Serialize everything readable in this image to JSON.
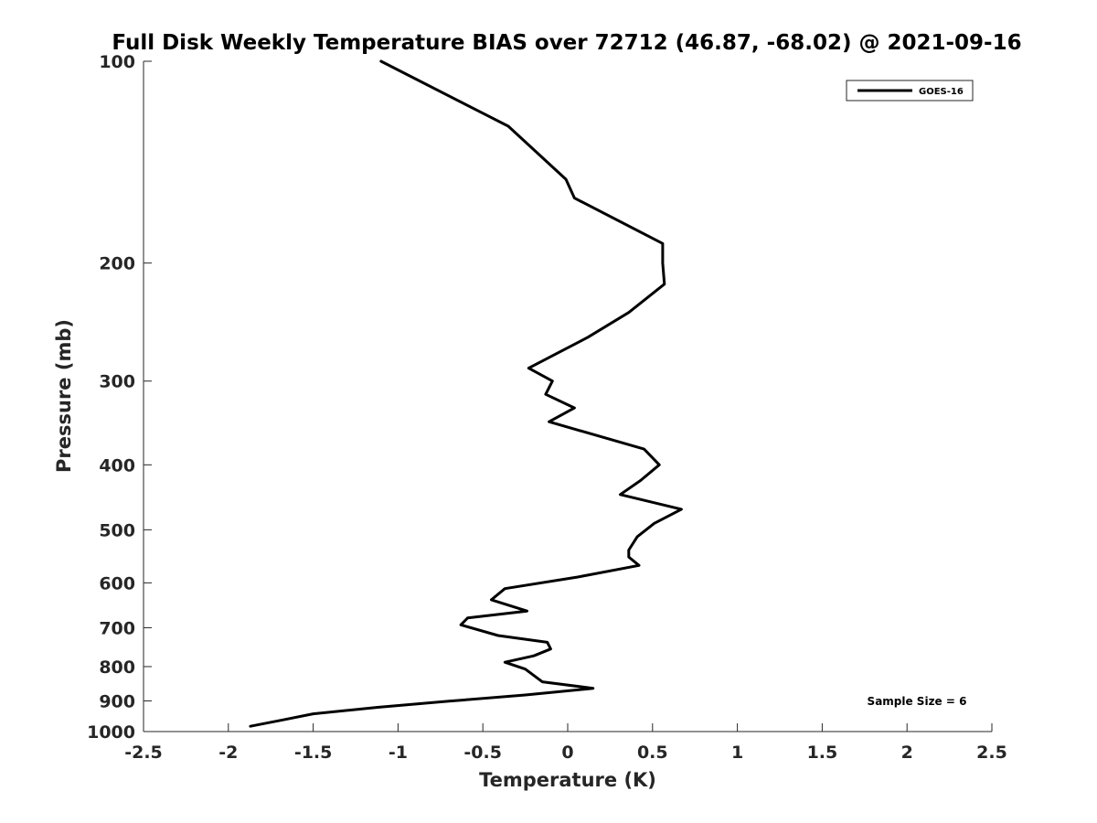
{
  "chart_data": {
    "type": "line",
    "title": "Full Disk Weekly Temperature BIAS over 72712 (46.87, -68.02) @ 2021-09-16",
    "xlabel": "Temperature (K)",
    "ylabel": "Pressure (mb)",
    "xlim": [
      -2.5,
      2.5
    ],
    "ylim": [
      100,
      1000
    ],
    "y_scale": "log",
    "y_reversed": true,
    "x_ticks": [
      {
        "value": -2.5,
        "label": "-2.5"
      },
      {
        "value": -2,
        "label": "-2"
      },
      {
        "value": -1.5,
        "label": "-1.5"
      },
      {
        "value": -1,
        "label": "-1"
      },
      {
        "value": -0.5,
        "label": "-0.5"
      },
      {
        "value": 0,
        "label": "0"
      },
      {
        "value": 0.5,
        "label": "0.5"
      },
      {
        "value": 1,
        "label": "1"
      },
      {
        "value": 1.5,
        "label": "1.5"
      },
      {
        "value": 2,
        "label": "2"
      },
      {
        "value": 2.5,
        "label": "2.5"
      }
    ],
    "y_ticks": [
      {
        "value": 100,
        "label": "100"
      },
      {
        "value": 200,
        "label": "200"
      },
      {
        "value": 300,
        "label": "300"
      },
      {
        "value": 400,
        "label": "400"
      },
      {
        "value": 500,
        "label": "500"
      },
      {
        "value": 600,
        "label": "600"
      },
      {
        "value": 700,
        "label": "700"
      },
      {
        "value": 800,
        "label": "800"
      },
      {
        "value": 900,
        "label": "900"
      },
      {
        "value": 1000,
        "label": "1000"
      }
    ],
    "grid": false,
    "legend_position": "top-right",
    "series": [
      {
        "name": "GOES-16",
        "color": "#000000",
        "points": [
          {
            "x": -1.1,
            "p": 100
          },
          {
            "x": -0.35,
            "p": 125
          },
          {
            "x": -0.01,
            "p": 150
          },
          {
            "x": 0.04,
            "p": 160
          },
          {
            "x": 0.56,
            "p": 187
          },
          {
            "x": 0.56,
            "p": 200
          },
          {
            "x": 0.57,
            "p": 215
          },
          {
            "x": 0.36,
            "p": 237
          },
          {
            "x": 0.12,
            "p": 258
          },
          {
            "x": -0.23,
            "p": 287
          },
          {
            "x": -0.09,
            "p": 300
          },
          {
            "x": -0.13,
            "p": 314
          },
          {
            "x": 0.04,
            "p": 329
          },
          {
            "x": -0.11,
            "p": 345
          },
          {
            "x": 0.45,
            "p": 379
          },
          {
            "x": 0.54,
            "p": 400
          },
          {
            "x": 0.43,
            "p": 422
          },
          {
            "x": 0.31,
            "p": 443
          },
          {
            "x": 0.67,
            "p": 466
          },
          {
            "x": 0.51,
            "p": 489
          },
          {
            "x": 0.41,
            "p": 512
          },
          {
            "x": 0.36,
            "p": 536
          },
          {
            "x": 0.36,
            "p": 549
          },
          {
            "x": 0.42,
            "p": 565
          },
          {
            "x": 0.06,
            "p": 588
          },
          {
            "x": -0.37,
            "p": 612
          },
          {
            "x": -0.45,
            "p": 636
          },
          {
            "x": -0.24,
            "p": 661
          },
          {
            "x": -0.59,
            "p": 677
          },
          {
            "x": -0.63,
            "p": 693
          },
          {
            "x": -0.41,
            "p": 719
          },
          {
            "x": -0.12,
            "p": 736
          },
          {
            "x": -0.1,
            "p": 753
          },
          {
            "x": -0.2,
            "p": 771
          },
          {
            "x": -0.37,
            "p": 788
          },
          {
            "x": -0.25,
            "p": 807
          },
          {
            "x": -0.15,
            "p": 843
          },
          {
            "x": 0.15,
            "p": 862
          },
          {
            "x": -0.25,
            "p": 882
          },
          {
            "x": -0.7,
            "p": 901
          },
          {
            "x": -1.12,
            "p": 920
          },
          {
            "x": -1.5,
            "p": 941
          },
          {
            "x": -1.68,
            "p": 961
          },
          {
            "x": -1.87,
            "p": 982
          }
        ]
      }
    ],
    "annotations": [
      "Sample Size = 6"
    ]
  }
}
